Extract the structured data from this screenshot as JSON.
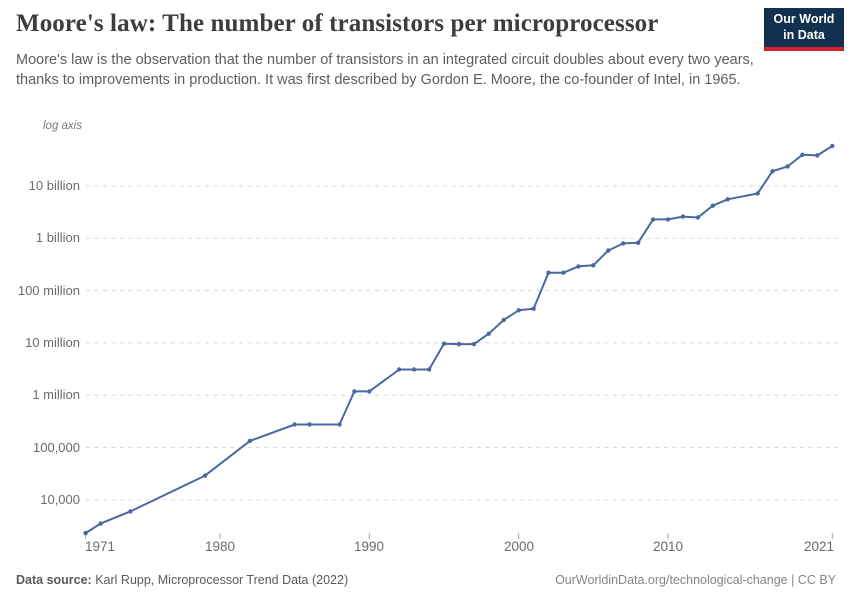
{
  "header": {
    "title": "Moore's law: The number of transistors per microprocessor",
    "subtitle": "Moore's law is the observation that the number of transistors in an integrated circuit doubles about every two years, thanks to improvements in production. It was first described by Gordon E. Moore, the co-founder of Intel, in 1965.",
    "logo": {
      "line1": "Our World",
      "line2": "in Data"
    }
  },
  "chart_data": {
    "type": "line",
    "title": "Moore's law: The number of transistors per microprocessor",
    "yscale": "log",
    "yaxis_note": "log axis",
    "grid": true,
    "legend": "none",
    "xlim": [
      1970,
      2022.5
    ],
    "ylim": [
      2308,
      58200000000
    ],
    "series": [
      {
        "name": "Transistors per microprocessor",
        "points": [
          [
            1971,
            2308
          ],
          [
            1972,
            3500
          ],
          [
            1974,
            6000
          ],
          [
            1979,
            29000
          ],
          [
            1982,
            134000
          ],
          [
            1985,
            275000
          ],
          [
            1986,
            275000
          ],
          [
            1988,
            275000
          ],
          [
            1989,
            1180235
          ],
          [
            1990,
            1180235
          ],
          [
            1992,
            3100000
          ],
          [
            1993,
            3100000
          ],
          [
            1994,
            3100000
          ],
          [
            1995,
            9646111
          ],
          [
            1996,
            9500000
          ],
          [
            1997,
            9500000
          ],
          [
            1998,
            15000000
          ],
          [
            1999,
            27400000
          ],
          [
            2000,
            42000000
          ],
          [
            2001,
            45000000
          ],
          [
            2002,
            220000000
          ],
          [
            2003,
            220000000
          ],
          [
            2004,
            290000000
          ],
          [
            2005,
            305000000
          ],
          [
            2006,
            585000000
          ],
          [
            2007,
            800000000
          ],
          [
            2008,
            820000000
          ],
          [
            2009,
            2300000000
          ],
          [
            2010,
            2300000000
          ],
          [
            2011,
            2600000000
          ],
          [
            2012,
            2500000000
          ],
          [
            2013,
            4200000000
          ],
          [
            2014,
            5560000000
          ],
          [
            2016,
            7200000000
          ],
          [
            2017,
            19200000000
          ],
          [
            2018,
            23600000000
          ],
          [
            2019,
            39540000000
          ],
          [
            2020,
            38500000000
          ],
          [
            2021,
            58200000000
          ]
        ]
      }
    ],
    "yticks": [
      {
        "value": 10000000000,
        "label": "10 billion"
      },
      {
        "value": 1000000000,
        "label": "1 billion"
      },
      {
        "value": 100000000,
        "label": "100 million"
      },
      {
        "value": 10000000,
        "label": "10 million"
      },
      {
        "value": 1000000,
        "label": "1 million"
      },
      {
        "value": 100000,
        "label": "100,000"
      },
      {
        "value": 10000,
        "label": "10,000"
      }
    ],
    "xticks": [
      {
        "value": 1971,
        "label": "1971"
      },
      {
        "value": 1980,
        "label": "1980"
      },
      {
        "value": 1990,
        "label": "1990"
      },
      {
        "value": 2000,
        "label": "2000"
      },
      {
        "value": 2010,
        "label": "2010"
      },
      {
        "value": 2021,
        "label": "2021"
      }
    ]
  },
  "colors": {
    "line": "#4c68a1",
    "grid": "#d9d9d9",
    "tick": "#a8a8a8",
    "title_text": "#3d3d3d",
    "subtitle_text": "#5e5e5e",
    "axis_text": "#6b6b6b",
    "logo_bg": "#12304f",
    "logo_red": "#d0232e"
  },
  "footer": {
    "source_label": "Data source:",
    "source_value": "Karl Rupp, Microprocessor Trend Data (2022)",
    "license": "OurWorldinData.org/technological-change | CC BY"
  }
}
